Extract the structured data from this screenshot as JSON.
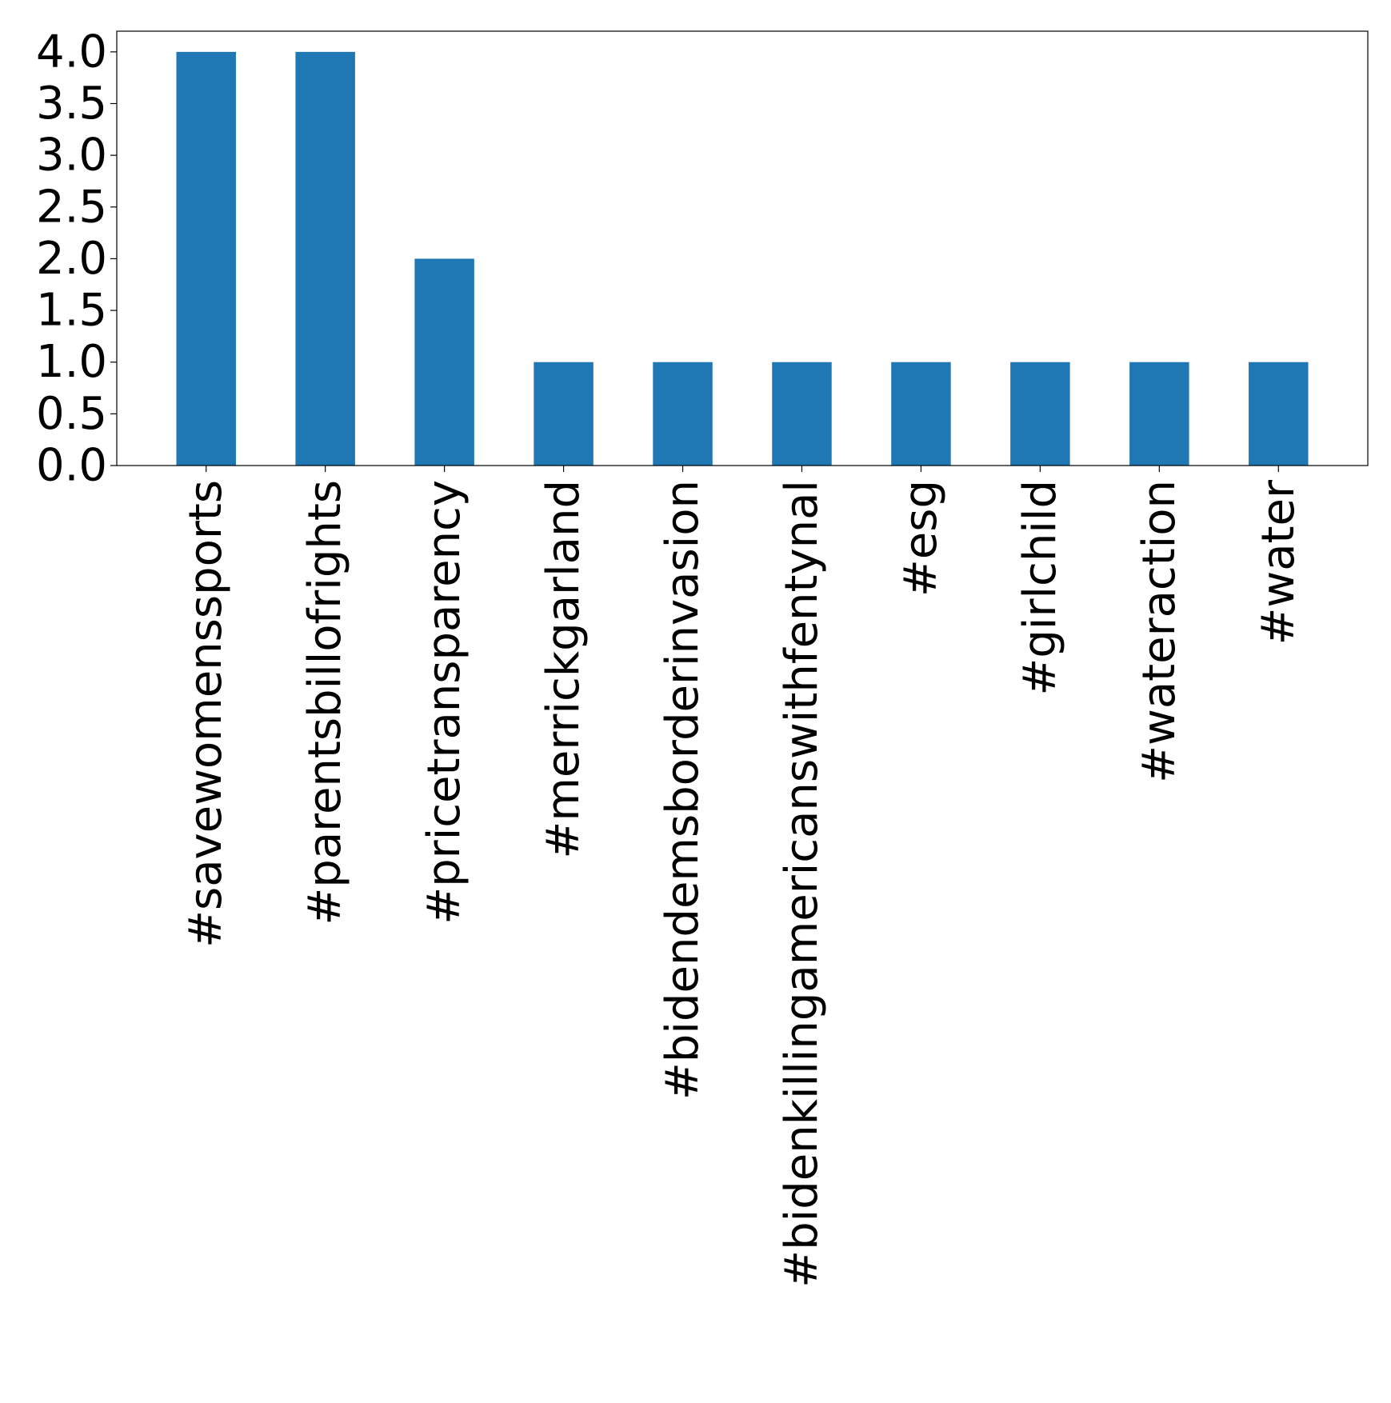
{
  "chart_data": {
    "type": "bar",
    "title": "",
    "xlabel": "",
    "ylabel": "",
    "categories": [
      "#savewomenssports",
      "#parentsbillofrights",
      "#pricetransparency",
      "#merrickgarland",
      "#bidendemsborderinvasion",
      "#bidenkillingamericanswithfentynal",
      "#esg",
      "#girlchild",
      "#wateraction",
      "#water"
    ],
    "values": [
      4,
      4,
      2,
      1,
      1,
      1,
      1,
      1,
      1,
      1
    ],
    "ylim": [
      0,
      4.2
    ],
    "yticks": [
      "0.0",
      "0.5",
      "1.0",
      "1.5",
      "2.0",
      "2.5",
      "3.0",
      "3.5",
      "4.0"
    ],
    "bar_color": "#1f77b4",
    "grid": false,
    "legend": "none"
  }
}
